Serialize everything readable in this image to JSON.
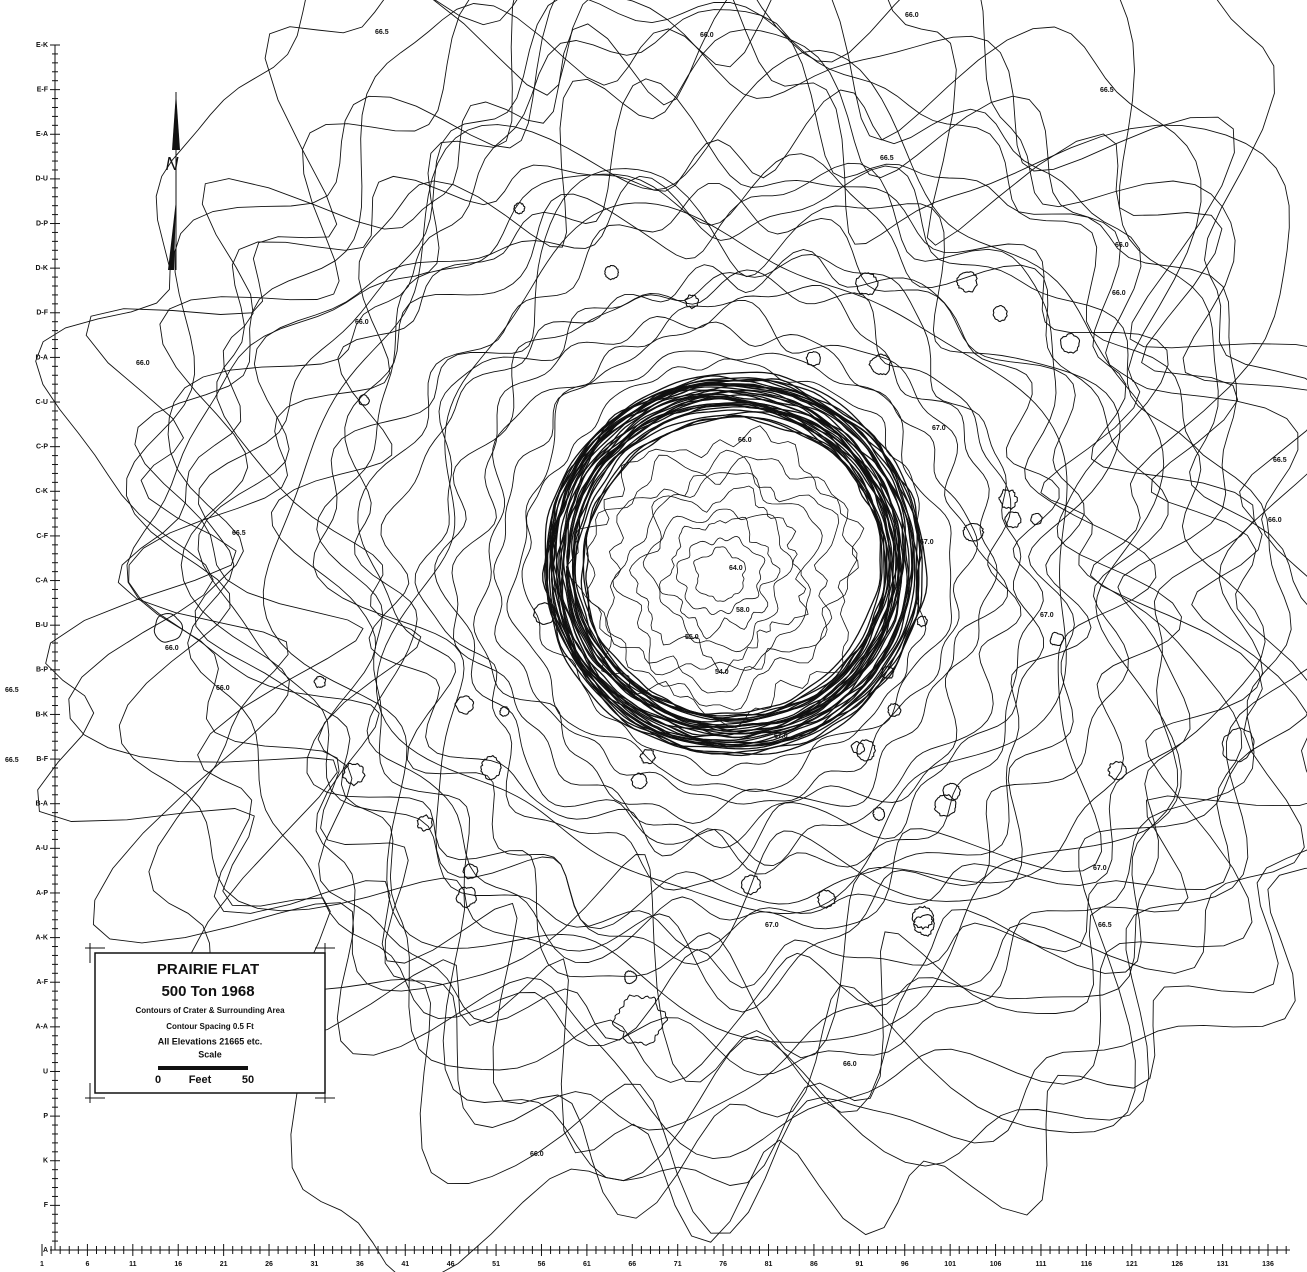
{
  "map": {
    "legend": {
      "title": "PRAIRIE FLAT",
      "subtitle": "500 Ton 1968",
      "line1": "Contours of Crater & Surrounding Area",
      "line2": "Contour Spacing 0.5 Ft",
      "line3": "All Elevations 21665 etc.",
      "scale_title": "Scale",
      "scale_start": "0",
      "scale_unit": "Feet",
      "scale_end": "50"
    },
    "north_label": "N",
    "left_axis": [
      "E-K",
      "E-F",
      "E-A",
      "D-U",
      "D-P",
      "D-K",
      "D-F",
      "D-A",
      "C-U",
      "C-P",
      "C-K",
      "C-F",
      "C-A",
      "B-U",
      "B-P",
      "B-K",
      "B-F",
      "B-A",
      "A-U",
      "A-P",
      "A-K",
      "A-F",
      "A-A",
      "U",
      "P",
      "K",
      "F",
      "A"
    ],
    "bottom_axis": [
      "1",
      "6",
      "11",
      "16",
      "21",
      "26",
      "31",
      "36",
      "41",
      "46",
      "51",
      "56",
      "61",
      "66",
      "71",
      "76",
      "81",
      "86",
      "91",
      "96",
      "101",
      "106",
      "111",
      "116",
      "121",
      "126",
      "131",
      "136"
    ],
    "contour_labels": [
      "66.5",
      "66.0",
      "66.5",
      "66.0",
      "66.5",
      "66.0",
      "66.0",
      "66.0",
      "66.0",
      "66.5",
      "66.0",
      "66.5",
      "67.0",
      "67.0",
      "67.0",
      "66.0",
      "66.5",
      "66.5",
      "66.0",
      "66.0",
      "64.0",
      "55.0",
      "58.0",
      "54.0",
      "67.0",
      "67.0",
      "66.5",
      "67.0",
      "66.0",
      "66.0"
    ]
  }
}
